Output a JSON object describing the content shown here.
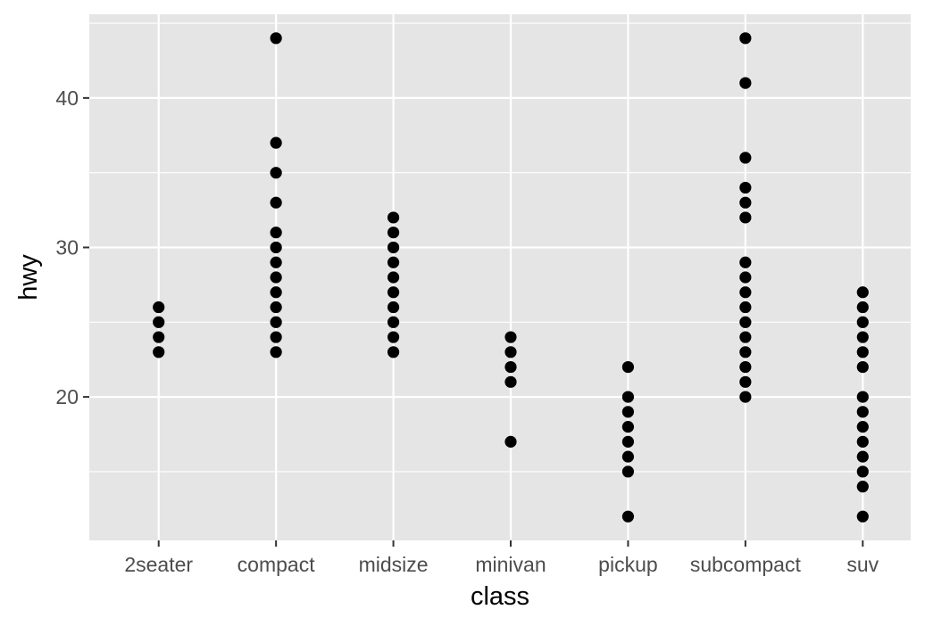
{
  "chart_data": {
    "type": "scatter",
    "title": "",
    "xlabel": "class",
    "ylabel": "hwy",
    "categories": [
      "2seater",
      "compact",
      "midsize",
      "minivan",
      "pickup",
      "subcompact",
      "suv"
    ],
    "ylim": [
      10.4,
      45.6
    ],
    "y_ticks": [
      20,
      30,
      40
    ],
    "y_tick_labels": [
      "20",
      "30",
      "40"
    ],
    "grid": true,
    "colors": {
      "panel": "#e5e5e5",
      "grid": "#ffffff",
      "point": "#000000",
      "tick": "#333333"
    },
    "points": {
      "2seater": [
        23,
        24,
        25,
        26
      ],
      "compact": [
        23,
        24,
        25,
        26,
        27,
        28,
        29,
        30,
        31,
        33,
        35,
        37,
        44
      ],
      "midsize": [
        23,
        24,
        25,
        26,
        27,
        28,
        29,
        30,
        31,
        32
      ],
      "minivan": [
        17,
        21,
        22,
        23,
        24
      ],
      "pickup": [
        12,
        15,
        16,
        17,
        18,
        19,
        20,
        22
      ],
      "subcompact": [
        20,
        21,
        22,
        23,
        24,
        25,
        26,
        27,
        28,
        29,
        32,
        33,
        34,
        36,
        41,
        44
      ],
      "suv": [
        12,
        14,
        15,
        16,
        17,
        18,
        19,
        20,
        22,
        23,
        24,
        25,
        26,
        27
      ]
    }
  }
}
